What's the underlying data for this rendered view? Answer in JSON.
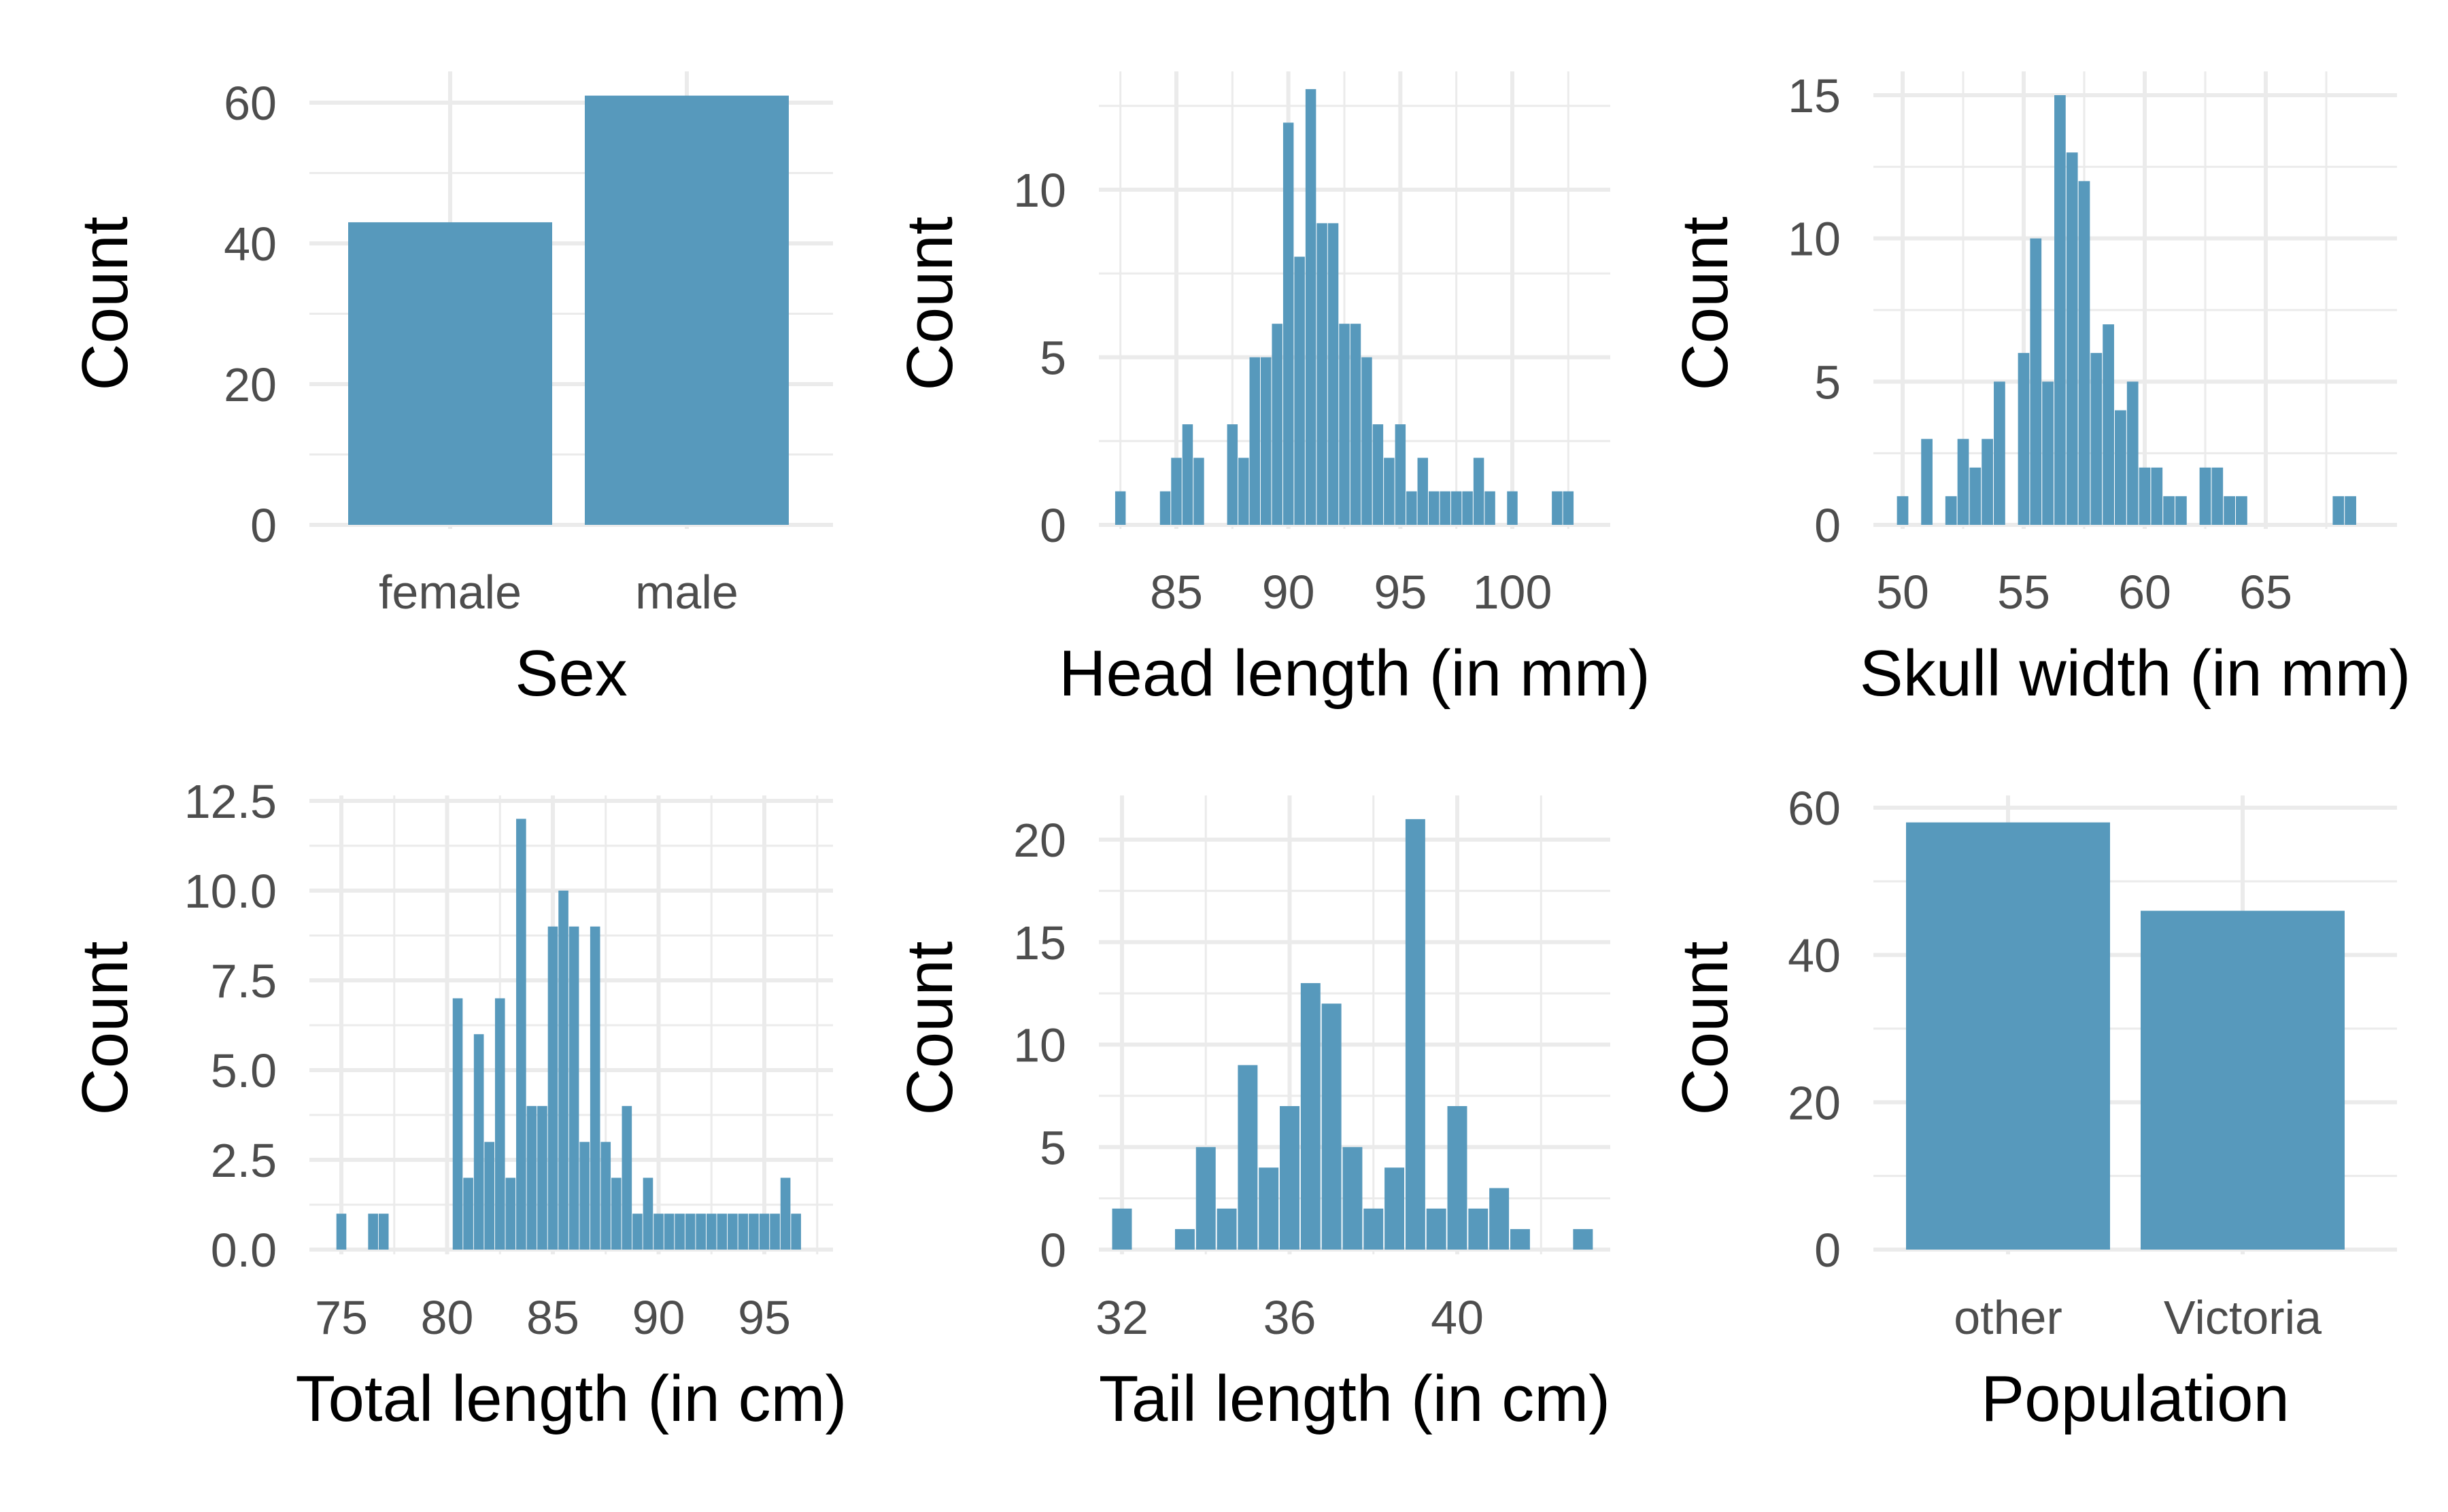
{
  "colors": {
    "bar": "#5799BC",
    "grid": "#EBEBEB",
    "tick_text": "#4D4D4D",
    "title_text": "#000000"
  },
  "chart_data": [
    {
      "type": "bar",
      "xlabel": "Sex",
      "ylabel": "Count",
      "categories": [
        "female",
        "male"
      ],
      "values": [
        43,
        61
      ],
      "ylim": [
        0,
        61
      ],
      "yticks": [
        0,
        20,
        40,
        60
      ],
      "grid": true
    },
    {
      "type": "bar",
      "subtype": "histogram",
      "xlabel": "Head length (in mm)",
      "ylabel": "Count",
      "bin_width": 0.5,
      "x": [
        82.5,
        84.5,
        85.0,
        85.5,
        86.0,
        87.5,
        88.0,
        88.5,
        89.0,
        89.5,
        90.0,
        90.5,
        91.0,
        91.5,
        92.0,
        92.5,
        93.0,
        93.5,
        94.0,
        94.5,
        95.0,
        95.5,
        96.0,
        96.5,
        97.0,
        97.5,
        98.0,
        98.5,
        99.0,
        100.0,
        102.0,
        102.5
      ],
      "values": [
        1,
        1,
        2,
        3,
        2,
        3,
        2,
        5,
        5,
        6,
        12,
        8,
        13,
        9,
        9,
        6,
        6,
        5,
        3,
        2,
        3,
        1,
        2,
        1,
        1,
        1,
        1,
        2,
        1,
        1,
        1,
        1
      ],
      "xlim": [
        82.0,
        103.0
      ],
      "ylim": [
        0,
        13
      ],
      "xticks": [
        85,
        90,
        95,
        100
      ],
      "yticks": [
        0,
        5,
        10
      ],
      "grid": true
    },
    {
      "type": "bar",
      "subtype": "histogram",
      "xlabel": "Skull width (in mm)",
      "ylabel": "Count",
      "bin_width": 0.5,
      "x": [
        50.0,
        51.0,
        52.0,
        52.5,
        53.0,
        53.5,
        54.0,
        55.0,
        55.5,
        56.0,
        56.5,
        57.0,
        57.5,
        58.0,
        58.5,
        59.0,
        59.5,
        60.0,
        60.5,
        61.0,
        61.5,
        62.5,
        63.0,
        63.5,
        64.0,
        68.0,
        68.5
      ],
      "values": [
        1,
        3,
        1,
        3,
        2,
        3,
        5,
        6,
        10,
        5,
        15,
        13,
        12,
        6,
        7,
        4,
        5,
        2,
        2,
        1,
        1,
        2,
        2,
        1,
        1,
        1,
        1
      ],
      "xlim": [
        49.5,
        69.0
      ],
      "ylim": [
        0,
        15
      ],
      "xticks": [
        50,
        55,
        60,
        65
      ],
      "yticks": [
        0,
        5,
        10,
        15
      ],
      "grid": true
    },
    {
      "type": "bar",
      "subtype": "histogram",
      "xlabel": "Total length (in cm)",
      "ylabel": "Count",
      "bin_width": 0.5,
      "x": [
        75.0,
        76.5,
        77.0,
        80.5,
        81.0,
        81.5,
        82.0,
        82.5,
        83.0,
        83.5,
        84.0,
        84.5,
        85.0,
        85.5,
        86.0,
        86.5,
        87.0,
        87.5,
        88.0,
        88.5,
        89.0,
        89.5,
        90.0,
        90.5,
        91.0,
        91.5,
        92.0,
        92.5,
        93.0,
        93.5,
        94.0,
        94.5,
        95.0,
        95.5,
        96.0,
        96.5
      ],
      "values": [
        1,
        1,
        1,
        7,
        2,
        6,
        3,
        7,
        2,
        12,
        4,
        4,
        9,
        10,
        9,
        3,
        9,
        3,
        2,
        4,
        1,
        2,
        1,
        1,
        1,
        1,
        1,
        1,
        1,
        1,
        1,
        1,
        1,
        1,
        2,
        1
      ],
      "ylim": [
        0,
        12.5
      ],
      "xticks": [
        75,
        80,
        85,
        90,
        95
      ],
      "yticks": [
        0.0,
        2.5,
        5.0,
        7.5,
        10.0,
        12.5
      ],
      "ytick_labels": [
        "0.0",
        "2.5",
        "5.0",
        "7.5",
        "10.0",
        "12.5"
      ],
      "grid": true
    },
    {
      "type": "bar",
      "subtype": "histogram",
      "xlabel": "Tail length (in cm)",
      "ylabel": "Count",
      "bin_width": 0.5,
      "x": [
        32.0,
        33.5,
        34.0,
        34.5,
        35.0,
        35.5,
        36.0,
        36.5,
        37.0,
        37.5,
        38.0,
        38.5,
        39.0,
        39.5,
        40.0,
        40.5,
        41.0,
        41.5,
        43.0
      ],
      "values": [
        2,
        1,
        5,
        2,
        9,
        4,
        7,
        13,
        12,
        5,
        2,
        4,
        21,
        2,
        7,
        2,
        3,
        1,
        1
      ],
      "xlim": [
        31.5,
        43.5
      ],
      "ylim": [
        0,
        21
      ],
      "xticks": [
        32,
        36,
        40
      ],
      "yticks": [
        0,
        5,
        10,
        15,
        20
      ],
      "grid": true
    },
    {
      "type": "bar",
      "xlabel": "Population",
      "ylabel": "Count",
      "categories": [
        "other",
        "Victoria"
      ],
      "values": [
        58,
        46
      ],
      "ylim": [
        0,
        58
      ],
      "yticks": [
        0,
        20,
        40,
        60
      ],
      "grid": true
    }
  ]
}
